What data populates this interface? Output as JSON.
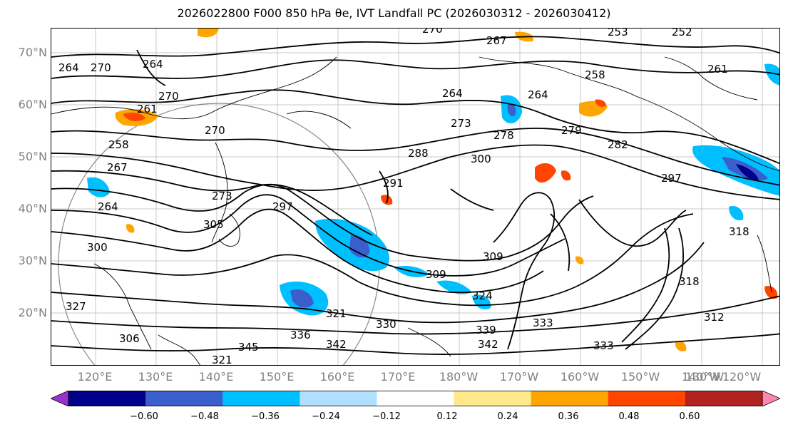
{
  "title": "2026022800 F000 850 hPa θe, IVT Landfall PC (2026030312 - 2026030412)",
  "lat_labels": [
    "70°N",
    "60°N",
    "50°N",
    "40°N",
    "30°N",
    "20°N"
  ],
  "lon_labels": [
    "120°E",
    "130°E",
    "140°E",
    "150°E",
    "160°E",
    "170°E",
    "180°W",
    "170°W",
    "160°W",
    "150°W",
    "140°W",
    "130°W",
    "120°W"
  ],
  "contour_labels": [
    "270",
    "267",
    "253",
    "252",
    "264",
    "273",
    "270",
    "261",
    "258",
    "264",
    "264",
    "261",
    "270",
    "264",
    "270",
    "264",
    "258",
    "273",
    "279",
    "282",
    "278",
    "267",
    "300",
    "297",
    "291",
    "288",
    "297",
    "305",
    "309",
    "300",
    "309",
    "318",
    "321",
    "324",
    "312",
    "330",
    "333",
    "336",
    "342",
    "345",
    "327",
    "339",
    "342",
    "333",
    "318",
    "306",
    "321"
  ],
  "colorbar": {
    "tick_labels": [
      "−0.60",
      "−0.48",
      "−0.36",
      "−0.24",
      "−0.12",
      "0.12",
      "0.24",
      "0.36",
      "0.48",
      "0.60"
    ],
    "colors": [
      "#9932cc",
      "#00008b",
      "#3a5fcd",
      "#00bfff",
      "#b0e0ff",
      "#ffffff",
      "#ffe88a",
      "#ffa500",
      "#ff4500",
      "#b22222",
      "#ff88aa"
    ],
    "under_color": "#9932cc",
    "over_color": "#ff88aa"
  }
}
